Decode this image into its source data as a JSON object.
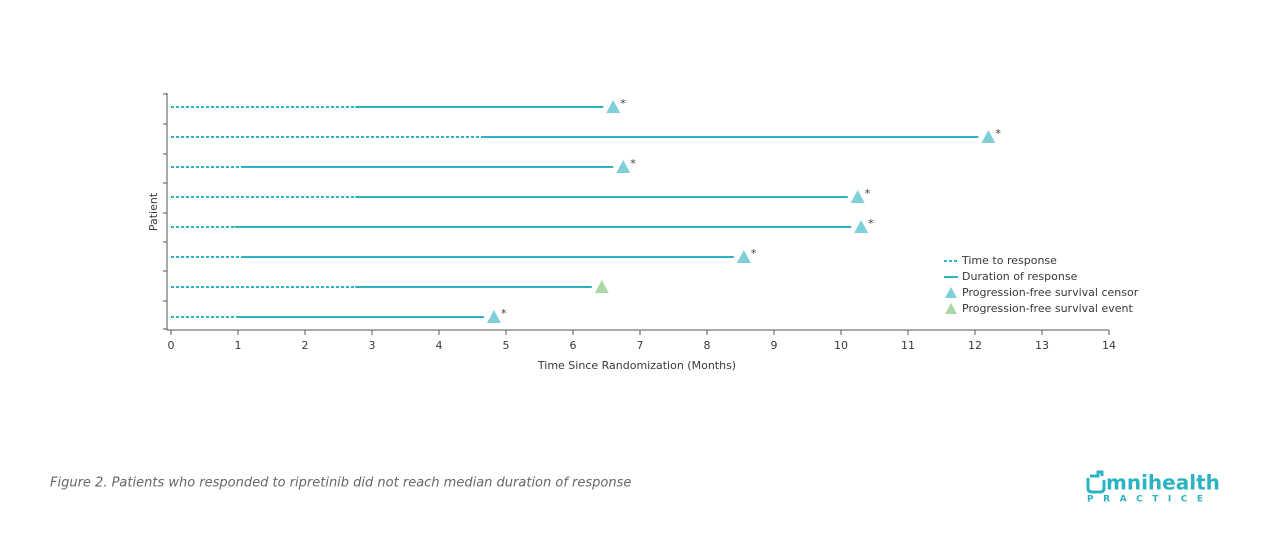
{
  "chart_data": {
    "type": "swimmer",
    "xlabel": "Time Since Randomization (Months)",
    "ylabel": "Patient",
    "xlim": [
      0,
      14
    ],
    "xticks": [
      0,
      1,
      2,
      3,
      4,
      5,
      6,
      7,
      8,
      9,
      10,
      11,
      12,
      13,
      14
    ],
    "series": [
      {
        "name": "Time to response",
        "color": "#2bb3c1",
        "values": [
          2.75,
          4.66,
          1.09,
          2.75,
          0.95,
          1.06,
          2.75,
          0.98
        ]
      },
      {
        "name": "Duration of response",
        "color": "#2bb3c1",
        "values": [
          6.6,
          12.2,
          6.75,
          10.25,
          10.3,
          8.55,
          6.43,
          4.82
        ]
      },
      {
        "name": "Progression-free survival censor",
        "color": "#7fcfd9",
        "values": [
          6.6,
          12.2,
          6.75,
          10.25,
          10.3,
          8.55,
          null,
          4.82
        ],
        "annotations": [
          "*",
          "*",
          "*",
          "*",
          "*",
          "*",
          null,
          "*"
        ]
      },
      {
        "name": "Progression-free survival event",
        "color": "#a9d8a6",
        "values": [
          null,
          null,
          null,
          null,
          null,
          null,
          6.43,
          null
        ]
      }
    ]
  },
  "caption": "Figure 2. Patients who responded to ripretinib did not reach median duration of response",
  "logo": {
    "name": "mnihealth",
    "sub": "P R A C T I C E"
  }
}
